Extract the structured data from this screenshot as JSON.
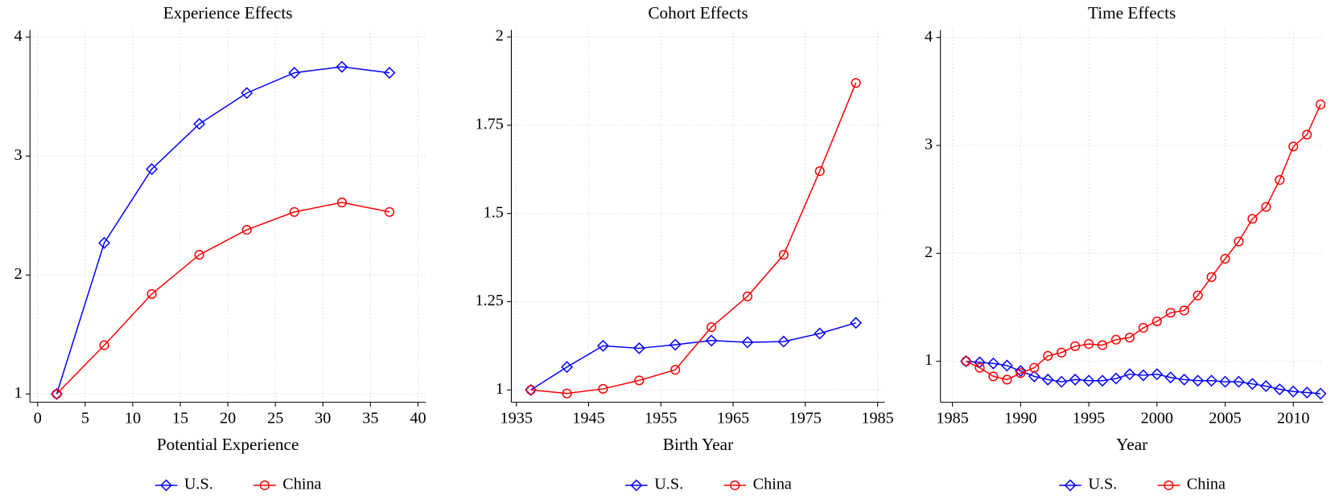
{
  "chart_data": [
    {
      "type": "line",
      "title": "Experience Effects",
      "x_label": "Potential Experience",
      "x": [
        2,
        7,
        12,
        17,
        22,
        27,
        32,
        37
      ],
      "series": [
        {
          "name": "U.S.",
          "color": "#0000ff",
          "marker": "diamond",
          "values": [
            1,
            2.27,
            2.89,
            3.27,
            3.53,
            3.7,
            3.75,
            3.7
          ]
        },
        {
          "name": "China",
          "color": "#ff0000",
          "marker": "circle",
          "values": [
            1,
            1.41,
            1.84,
            2.17,
            2.38,
            2.53,
            2.61,
            2.53
          ]
        }
      ],
      "xlim": [
        -0.81,
        40.81
      ],
      "ylim": [
        0.93,
        4.06
      ],
      "xticks": [
        0,
        5,
        10,
        15,
        20,
        25,
        30,
        35,
        40
      ],
      "yticks": [
        1,
        2,
        3,
        4
      ],
      "grid": true
    },
    {
      "type": "line",
      "title": "Cohort Effects",
      "x_label": "Birth Year",
      "x": [
        1937,
        1942,
        1947,
        1952,
        1957,
        1962,
        1967,
        1972,
        1977,
        1982
      ],
      "series": [
        {
          "name": "U.S.",
          "color": "#0000ff",
          "marker": "diamond",
          "values": [
            1,
            1.065,
            1.125,
            1.118,
            1.128,
            1.14,
            1.135,
            1.137,
            1.16,
            1.19
          ]
        },
        {
          "name": "China",
          "color": "#ff0000",
          "marker": "circle",
          "values": [
            1,
            0.99,
            1.003,
            1.027,
            1.057,
            1.178,
            1.265,
            1.383,
            1.62,
            1.87
          ]
        }
      ],
      "xlim": [
        1934.3,
        1986.0
      ],
      "ylim": [
        0.965,
        2.02
      ],
      "xticks": [
        1935,
        1945,
        1955,
        1965,
        1975,
        1985
      ],
      "yticks": [
        1,
        1.25,
        1.5,
        1.75,
        2
      ],
      "grid": true
    },
    {
      "type": "line",
      "title": "Time Effects",
      "x_label": "Year",
      "x": [
        1986,
        1987,
        1988,
        1989,
        1990,
        1991,
        1992,
        1993,
        1994,
        1995,
        1996,
        1997,
        1998,
        1999,
        2000,
        2001,
        2002,
        2003,
        2004,
        2005,
        2006,
        2007,
        2008,
        2009,
        2010,
        2011,
        2012
      ],
      "series": [
        {
          "name": "U.S.",
          "color": "#0000ff",
          "marker": "diamond",
          "values": [
            1,
            0.99,
            0.98,
            0.96,
            0.91,
            0.86,
            0.83,
            0.81,
            0.83,
            0.82,
            0.82,
            0.84,
            0.88,
            0.87,
            0.88,
            0.85,
            0.83,
            0.82,
            0.82,
            0.81,
            0.81,
            0.79,
            0.77,
            0.74,
            0.72,
            0.71,
            0.7
          ]
        },
        {
          "name": "China",
          "color": "#ff0000",
          "marker": "circle",
          "values": [
            1,
            0.94,
            0.86,
            0.83,
            0.89,
            0.94,
            1.05,
            1.08,
            1.14,
            1.16,
            1.15,
            1.2,
            1.22,
            1.31,
            1.37,
            1.45,
            1.47,
            1.61,
            1.78,
            1.95,
            2.11,
            2.32,
            2.43,
            2.68,
            2.99,
            3.1,
            3.38
          ]
        }
      ],
      "xlim": [
        1984.12,
        2012.2
      ],
      "ylim": [
        0.62,
        4.07
      ],
      "xticks": [
        1985,
        1990,
        1995,
        2000,
        2005,
        2010
      ],
      "yticks": [
        1,
        2,
        3,
        4
      ],
      "grid": true
    }
  ]
}
